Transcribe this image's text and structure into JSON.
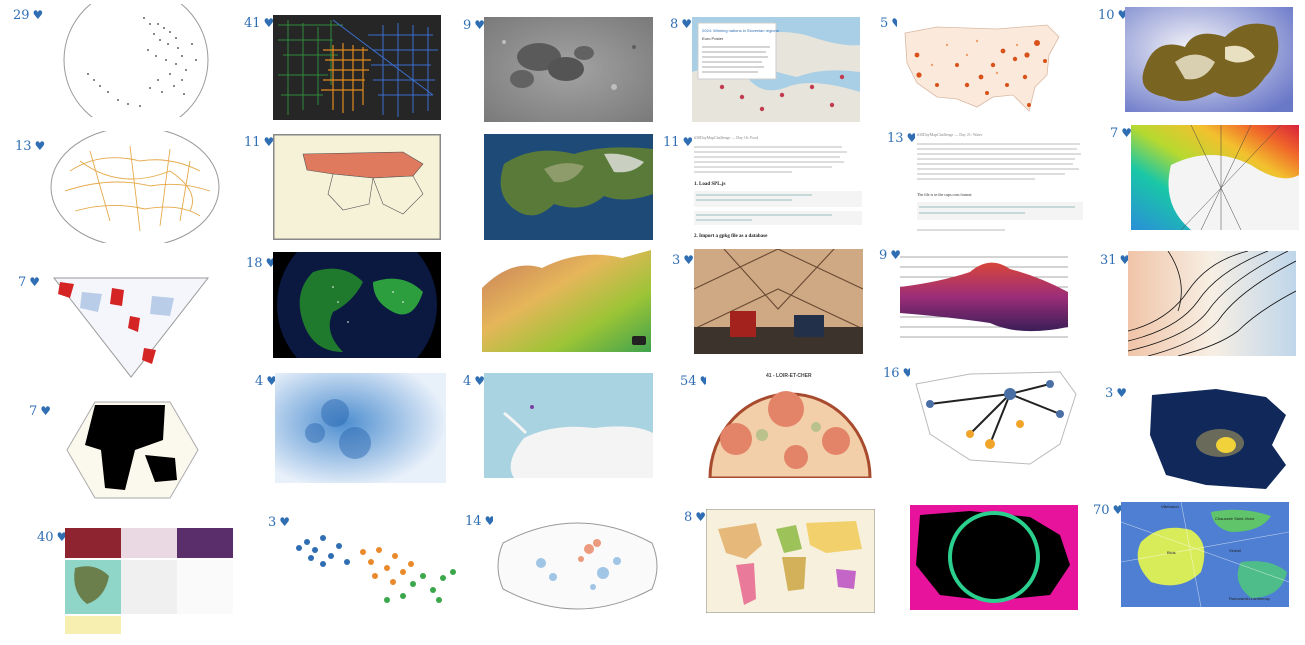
{
  "gallery": {
    "tiles": [
      {
        "likes": "29",
        "subject": "dotted globe"
      },
      {
        "likes": "41",
        "subject": "street network in green, orange and blue"
      },
      {
        "likes": "9",
        "subject": "lunar surface"
      },
      {
        "likes": "8",
        "subject": "europe map with popup"
      },
      {
        "likes": "5",
        "subject": "us population dots"
      },
      {
        "likes": "10",
        "subject": "distorted globe"
      },
      {
        "likes": "13",
        "subject": "globe with orange lines"
      },
      {
        "likes": "11",
        "subject": "world map with russia highlighted"
      },
      {
        "likes": "",
        "subject": "satellite alaska"
      },
      {
        "likes": "11",
        "subject": "notebook text"
      },
      {
        "likes": "13",
        "subject": "notebook text"
      },
      {
        "likes": "7",
        "subject": "rainbow polar map"
      },
      {
        "likes": "7",
        "subject": "triangle projection"
      },
      {
        "likes": "18",
        "subject": "night earth"
      },
      {
        "likes": "",
        "subject": "3d terrain"
      },
      {
        "likes": "3",
        "subject": "dome room photo"
      },
      {
        "likes": "9",
        "subject": "ridgeline terrain"
      },
      {
        "likes": "31",
        "subject": "contour lines"
      },
      {
        "likes": "7",
        "subject": "black continents hexagon"
      },
      {
        "likes": "4",
        "subject": "blue dot density"
      },
      {
        "likes": "4",
        "subject": "antarctica map"
      },
      {
        "likes": "54",
        "subject": "loir-et-cher geology"
      },
      {
        "likes": "16",
        "subject": "us flow map"
      },
      {
        "likes": "3",
        "subject": "heatmap region"
      },
      {
        "likes": "40",
        "subject": "small multiples"
      },
      {
        "likes": "3",
        "subject": "dot clusters"
      },
      {
        "likes": "14",
        "subject": "world bubble map"
      },
      {
        "likes": "8",
        "subject": "colored world political map"
      },
      {
        "likes": "",
        "subject": "magenta circle map"
      },
      {
        "likes": "70",
        "subject": "voronoi city map"
      }
    ],
    "heart_symbol": "♥",
    "embedded_text": {
      "europe_popup_title": "2024: Winning nations in Slovenian regions",
      "europe_popup_sub": "Euro Poster",
      "notebook1_header": "#30DayMapChallenge — Day 16: Food",
      "notebook1_s1": "1. Load SPL.js",
      "notebook1_s2": "2. Import a gpkg file as a database",
      "notebook2_header": "#30DayMapChallenge — Day 21: Water",
      "notebook2_line": "The file is in the cups.com format:",
      "loir_title": "41 - LOIR-ET-CHER",
      "voronoi_label_1": "Chaussée Saint-Victor",
      "voronoi_label_2": "Blois",
      "voronoi_label_3": "Vineuil",
      "voronoi_label_4": "Villebarou",
      "voronoi_label_5": "Romorantin-Lanthenay"
    },
    "colors": {
      "heart_text": "#2f6eb2",
      "accent_orange": "#e8892b",
      "accent_magenta": "#e8139c"
    }
  }
}
